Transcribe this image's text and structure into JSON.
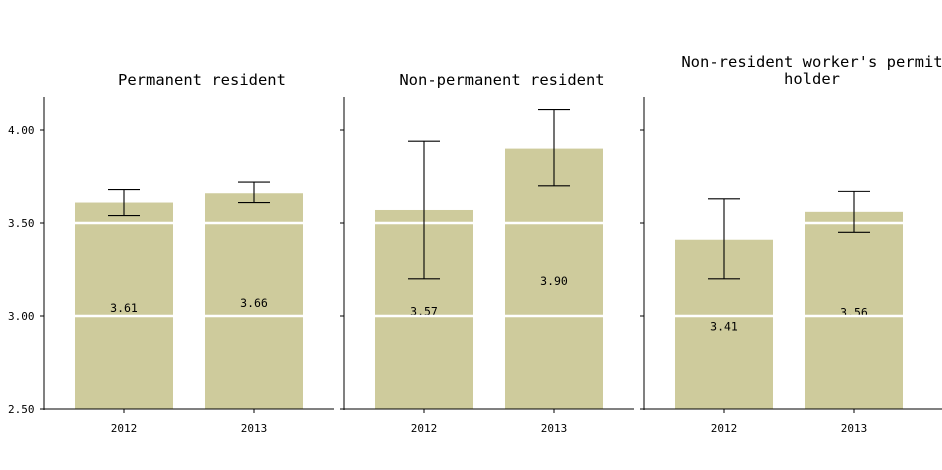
{
  "chart_data": {
    "type": "bar",
    "ylim": [
      2.5,
      4.15
    ],
    "yticks": [
      "2.50",
      "3.00",
      "3.50",
      "4.00"
    ],
    "grid": "horizontal white lines at 3.00 and 3.50",
    "bar_color": "#cecb9c",
    "error_color": "#000000",
    "panels": [
      {
        "title": [
          "Permanent resident"
        ],
        "categories": [
          "2012",
          "2013"
        ],
        "values": [
          3.61,
          3.66
        ],
        "labels": [
          "3.61",
          "3.66"
        ],
        "error_low": [
          3.54,
          3.61
        ],
        "error_high": [
          3.68,
          3.72
        ]
      },
      {
        "title": [
          "Non-permanent resident"
        ],
        "categories": [
          "2012",
          "2013"
        ],
        "values": [
          3.57,
          3.9
        ],
        "labels": [
          "3.57",
          "3.90"
        ],
        "error_low": [
          3.2,
          3.7
        ],
        "error_high": [
          3.94,
          4.11
        ]
      },
      {
        "title": [
          "Non-resident worker's permit",
          "holder"
        ],
        "categories": [
          "2012",
          "2013"
        ],
        "values": [
          3.41,
          3.56
        ],
        "labels": [
          "3.41",
          "3.56"
        ],
        "error_low": [
          3.2,
          3.45
        ],
        "error_high": [
          3.63,
          3.67
        ]
      }
    ]
  }
}
